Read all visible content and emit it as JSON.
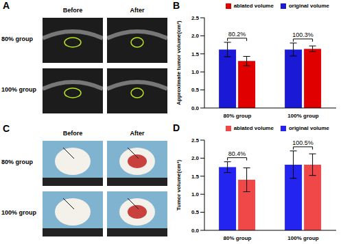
{
  "images": [
    {
      "title": "A",
      "columns": [
        "Before",
        "After"
      ],
      "rows": [
        "80% group",
        "100% group"
      ]
    },
    {
      "title": "C",
      "columns": [
        "Before",
        "After"
      ],
      "rows": [
        "80% group",
        "100% group"
      ]
    }
  ],
  "chart_data": [
    {
      "type": "bar",
      "title": "B",
      "ylabel": "Approximate tumor volume(cm³)",
      "categories": [
        "80% group",
        "100% group"
      ],
      "series": [
        {
          "name": "original volume",
          "color": "#1a1ad6",
          "values": [
            1.62,
            1.62
          ],
          "errors": [
            0.2,
            0.18
          ]
        },
        {
          "name": "ablated volume",
          "color": "#e00000",
          "values": [
            1.3,
            1.64
          ],
          "errors": [
            0.13,
            0.08
          ]
        }
      ],
      "ylim": [
        0,
        2.5
      ],
      "yticks": [
        {
          "value": 0,
          "label": "0.0"
        },
        {
          "value": 0.5,
          "label": "0.5"
        },
        {
          "value": 1,
          "label": "1.0"
        },
        {
          "value": 1.5,
          "label": "1.5"
        },
        {
          "value": 2,
          "label": "2.0"
        },
        {
          "value": 2.5,
          "label": "2.5"
        }
      ],
      "annotations": [
        {
          "category": "80% group",
          "text": "80.2%"
        },
        {
          "category": "100% group",
          "text": "100.3%"
        }
      ],
      "legend": "upper right"
    },
    {
      "type": "bar",
      "title": "D",
      "ylabel": "Tumor volume(cm³)",
      "categories": [
        "80% group",
        "100% group"
      ],
      "series": [
        {
          "name": "original volume",
          "color": "#2424f0",
          "values": [
            1.75,
            1.82
          ],
          "errors": [
            0.15,
            0.38
          ]
        },
        {
          "name": "ablated volume",
          "color": "#f04848",
          "values": [
            1.4,
            1.82
          ],
          "errors": [
            0.33,
            0.3
          ]
        }
      ],
      "ylim": [
        0,
        2.5
      ],
      "yticks": [
        {
          "value": 0,
          "label": "0.0"
        },
        {
          "value": 0.5,
          "label": "0.5"
        },
        {
          "value": 1,
          "label": "1.0"
        },
        {
          "value": 1.5,
          "label": "1.5"
        },
        {
          "value": 2,
          "label": "2.0"
        },
        {
          "value": 2.5,
          "label": "2.5"
        }
      ],
      "annotations": [
        {
          "category": "80% group",
          "text": "80.4%"
        },
        {
          "category": "100% group",
          "text": "100.5%"
        }
      ],
      "legend": "upper right"
    }
  ]
}
